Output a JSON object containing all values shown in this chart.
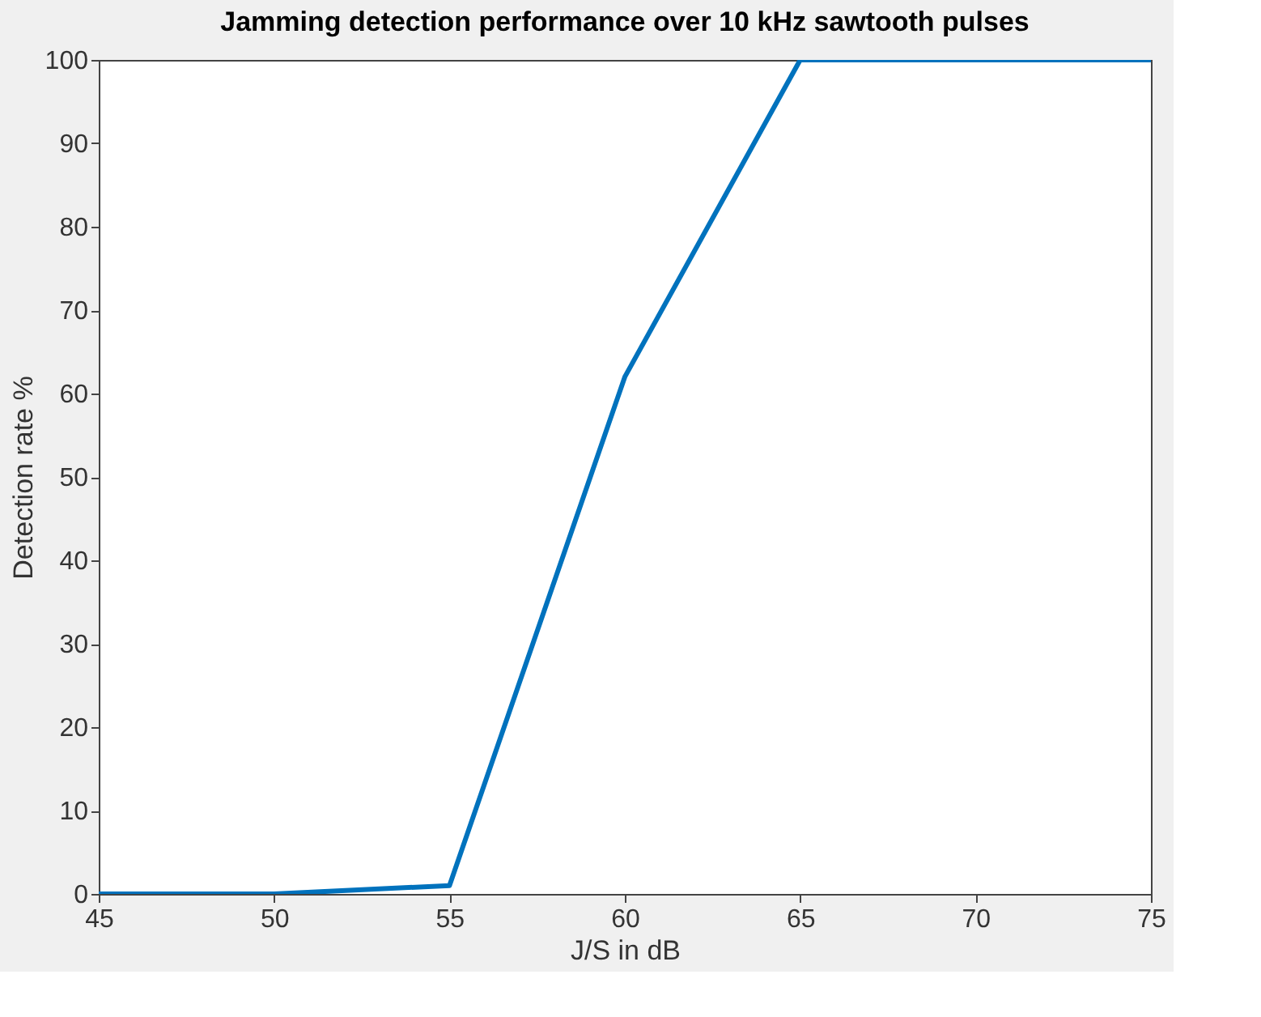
{
  "chart_data": {
    "type": "line",
    "title": "Jamming detection performance over 10 kHz sawtooth pulses",
    "xlabel": "J/S in dB",
    "ylabel": "Detection rate %",
    "x": [
      45,
      50,
      55,
      60,
      65,
      70,
      75
    ],
    "series": [
      {
        "color": "#0072bd",
        "values": [
          0,
          0,
          1,
          62,
          100,
          100,
          100
        ]
      }
    ],
    "xlim": [
      45,
      75
    ],
    "xticks": [
      45,
      50,
      55,
      60,
      65,
      70,
      75
    ],
    "ylim": [
      0,
      100
    ],
    "yticks": [
      0,
      10,
      20,
      30,
      40,
      50,
      60,
      70,
      80,
      90,
      100
    ],
    "grid": false,
    "marker": "none",
    "line_style": "solid"
  }
}
